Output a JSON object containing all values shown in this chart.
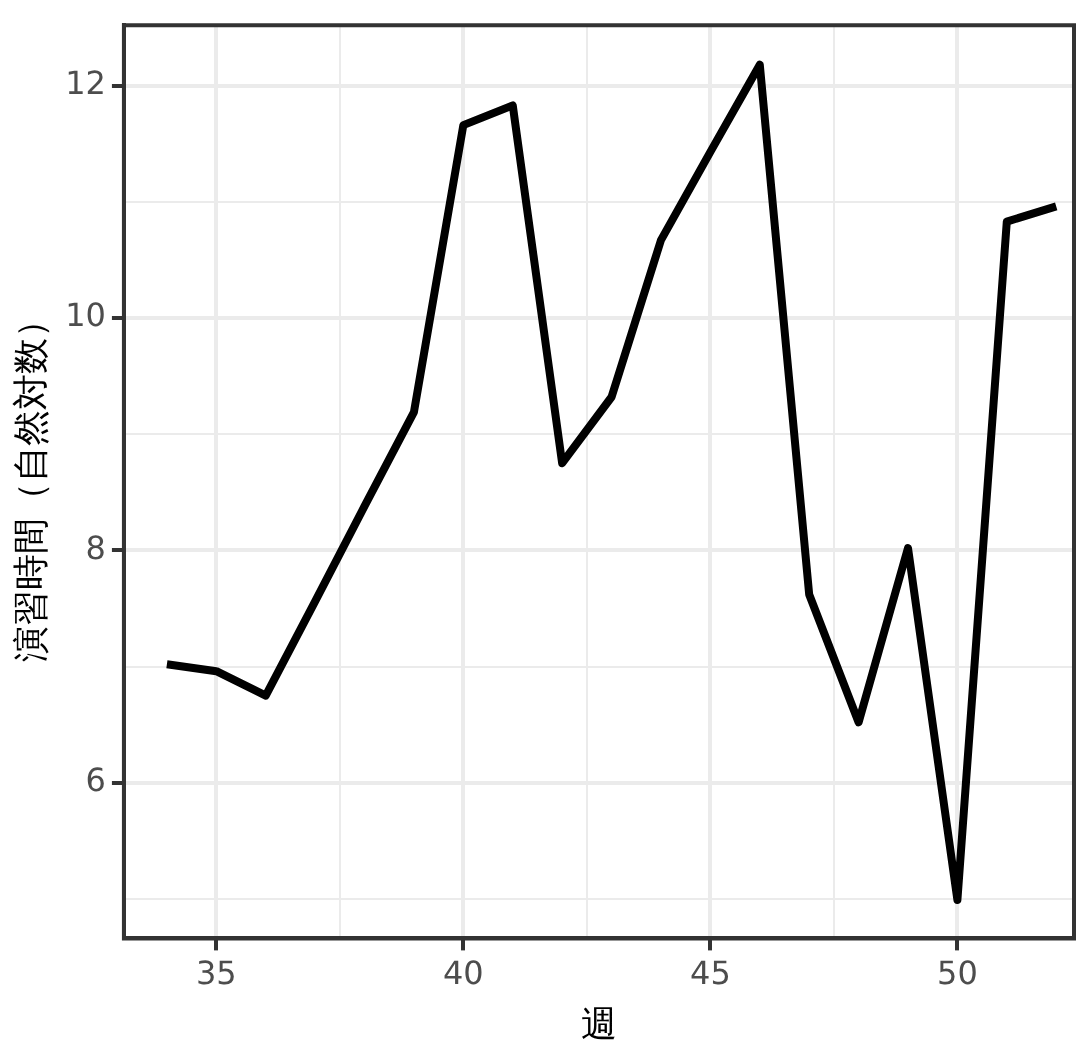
{
  "chart_data": {
    "type": "line",
    "xlabel": "週",
    "ylabel": "演習時間（自然対数）",
    "x": [
      34,
      35,
      36,
      37,
      38,
      39,
      40,
      41,
      42,
      43,
      44,
      45,
      46,
      47,
      48,
      49,
      50,
      51,
      52
    ],
    "series": [
      {
        "color": "#000000",
        "values": [
          7.02,
          6.96,
          6.75,
          7.56,
          8.38,
          9.19,
          11.66,
          11.83,
          8.75,
          9.32,
          10.67,
          11.43,
          12.18,
          7.62,
          6.52,
          8.02,
          4.99,
          10.83,
          10.96
        ]
      }
    ],
    "xlim": [
      33.13,
      52.36
    ],
    "ylim": [
      4.66,
      12.52
    ],
    "xticks": [
      35,
      {
        "value": 37.5,
        "label": null
      },
      40,
      {
        "value": 42.5,
        "label": null
      },
      45,
      {
        "value": 47.5,
        "label": null
      },
      50
    ],
    "yticks": [
      {
        "value": 5,
        "label": null
      },
      6,
      {
        "value": 7,
        "label": null
      },
      8,
      {
        "value": 9,
        "label": null
      },
      10,
      {
        "value": 11,
        "label": null
      },
      12
    ],
    "grid": true,
    "legend": false,
    "marker": "none",
    "line_style": "solid"
  }
}
